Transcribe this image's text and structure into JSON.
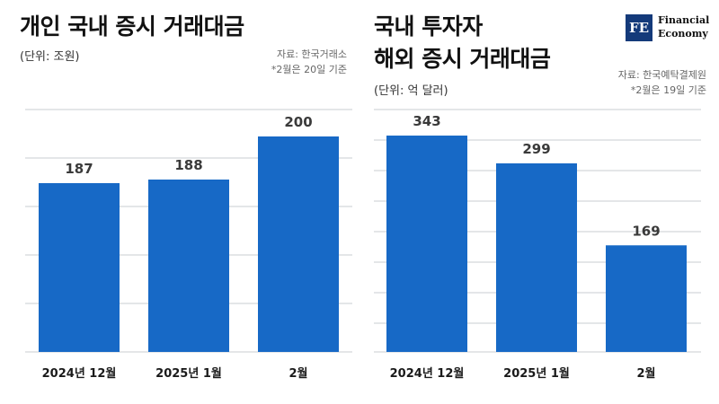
{
  "logo": {
    "mark": "FE",
    "line1": "Financial",
    "line2": "Economy"
  },
  "colors": {
    "bar": "#1769c6",
    "grid": "#c8ccd2",
    "value": "#3a3a3a",
    "category": "#1a1a1a"
  },
  "chart_data": [
    {
      "type": "bar",
      "title": "개인 국내 증시 거래대금",
      "unit": "(단위: 조원)",
      "source": "자료: 한국거래소",
      "note": "*2월은 20일 기준",
      "categories": [
        "2024년 12월",
        "2025년 1월",
        "2월"
      ],
      "values": [
        187,
        188,
        200
      ],
      "ylim": [
        140,
        210
      ],
      "grid": true
    },
    {
      "type": "bar",
      "title_lines": [
        "국내 투자자",
        "해외 증시 거래대금"
      ],
      "unit": "(단위: 억 달러)",
      "source": "자료: 한국예탁결제원",
      "note": "*2월은 19일 기준",
      "categories": [
        "2024년 12월",
        "2025년 1월",
        "2월"
      ],
      "values": [
        343,
        299,
        169
      ],
      "ylim": [
        0,
        390
      ],
      "grid": true
    }
  ]
}
